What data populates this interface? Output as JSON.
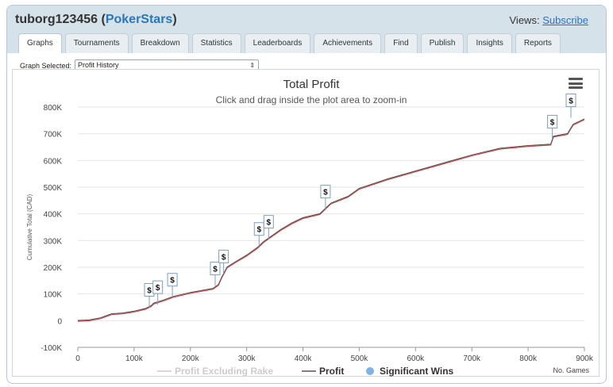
{
  "header": {
    "player_name": "tuborg123456",
    "site": "PokerStars",
    "views_label": "Views:",
    "subscribe_label": "Subscribe"
  },
  "tabs": [
    "Graphs",
    "Tournaments",
    "Breakdown",
    "Statistics",
    "Leaderboards",
    "Achievements",
    "Find",
    "Publish",
    "Insights",
    "Reports"
  ],
  "graph_selector": {
    "label": "Graph Selected:",
    "value": "Profit History"
  },
  "colors": {
    "profit_line": "#555555",
    "profit_ex_rake_line": "#cc4444",
    "significant_win": "#7fb2e5",
    "grid": "#e6e6e6"
  },
  "chart_data": {
    "type": "line",
    "title": "Total Profit",
    "subtitle": "Click and drag inside the plot area to zoom-in",
    "xlabel": "No. Games",
    "ylabel": "Cumulative Total (CAD)",
    "xlim": [
      0,
      900000
    ],
    "ylim": [
      -100000,
      800000
    ],
    "x_ticks": [
      0,
      100000,
      200000,
      300000,
      400000,
      500000,
      600000,
      700000,
      800000,
      900000
    ],
    "x_tick_labels": [
      "0",
      "100k",
      "200k",
      "300k",
      "400k",
      "500k",
      "600k",
      "700k",
      "800k",
      "900k"
    ],
    "y_ticks": [
      -100000,
      0,
      100000,
      200000,
      300000,
      400000,
      500000,
      600000,
      700000,
      800000
    ],
    "y_tick_labels": [
      "-100K",
      "0",
      "100K",
      "200K",
      "300K",
      "400K",
      "500K",
      "600K",
      "700K",
      "800K"
    ],
    "series": [
      {
        "name": "Profit",
        "x": [
          0,
          20000,
          40000,
          60000,
          80000,
          100000,
          120000,
          130000,
          135000,
          150000,
          170000,
          200000,
          240000,
          250000,
          255000,
          265000,
          280000,
          300000,
          320000,
          330000,
          340000,
          360000,
          380000,
          400000,
          430000,
          440000,
          450000,
          480000,
          500000,
          550000,
          600000,
          650000,
          700000,
          750000,
          800000,
          840000,
          845000,
          870000,
          880000,
          900000
        ],
        "values": [
          0,
          2000,
          10000,
          25000,
          28000,
          35000,
          45000,
          55000,
          65000,
          75000,
          90000,
          105000,
          120000,
          135000,
          160000,
          200000,
          220000,
          245000,
          275000,
          295000,
          310000,
          340000,
          365000,
          385000,
          400000,
          420000,
          440000,
          465000,
          495000,
          530000,
          560000,
          590000,
          620000,
          645000,
          655000,
          660000,
          690000,
          700000,
          735000,
          755000
        ]
      },
      {
        "name": "Profit Excluding Rake",
        "x": [
          0,
          20000,
          40000,
          60000,
          80000,
          100000,
          120000,
          130000,
          135000,
          150000,
          170000,
          200000,
          240000,
          250000,
          255000,
          265000,
          280000,
          300000,
          320000,
          330000,
          340000,
          360000,
          380000,
          400000,
          430000,
          440000,
          450000,
          480000,
          500000,
          550000,
          600000,
          650000,
          700000,
          750000,
          800000,
          840000,
          845000,
          870000,
          880000,
          900000
        ],
        "values": [
          0,
          2000,
          10000,
          25000,
          28000,
          35000,
          45000,
          55000,
          65000,
          75000,
          90000,
          105000,
          120000,
          135000,
          160000,
          200000,
          220000,
          245000,
          275000,
          295000,
          310000,
          340000,
          365000,
          385000,
          400000,
          420000,
          440000,
          465000,
          495000,
          530000,
          560000,
          590000,
          620000,
          645000,
          655000,
          660000,
          690000,
          700000,
          735000,
          755000
        ]
      }
    ],
    "significant_wins": [
      {
        "x": 127000,
        "y": 50000,
        "label": "$"
      },
      {
        "x": 142000,
        "y": 60000,
        "label": "$"
      },
      {
        "x": 168000,
        "y": 88000,
        "label": "$"
      },
      {
        "x": 244000,
        "y": 130000,
        "label": "$"
      },
      {
        "x": 259000,
        "y": 175000,
        "label": "$"
      },
      {
        "x": 322000,
        "y": 278000,
        "label": "$"
      },
      {
        "x": 339000,
        "y": 305000,
        "label": "$"
      },
      {
        "x": 440000,
        "y": 418000,
        "label": "$"
      },
      {
        "x": 843000,
        "y": 680000,
        "label": "$"
      },
      {
        "x": 876000,
        "y": 760000,
        "label": "$"
      }
    ],
    "legend": {
      "position": "bottom",
      "items": [
        {
          "label": "Profit Excluding Rake",
          "kind": "line",
          "state": "hidden"
        },
        {
          "label": "Profit",
          "kind": "line",
          "state": "shown"
        },
        {
          "label": "Significant Wins",
          "kind": "marker",
          "state": "shown"
        }
      ]
    }
  }
}
